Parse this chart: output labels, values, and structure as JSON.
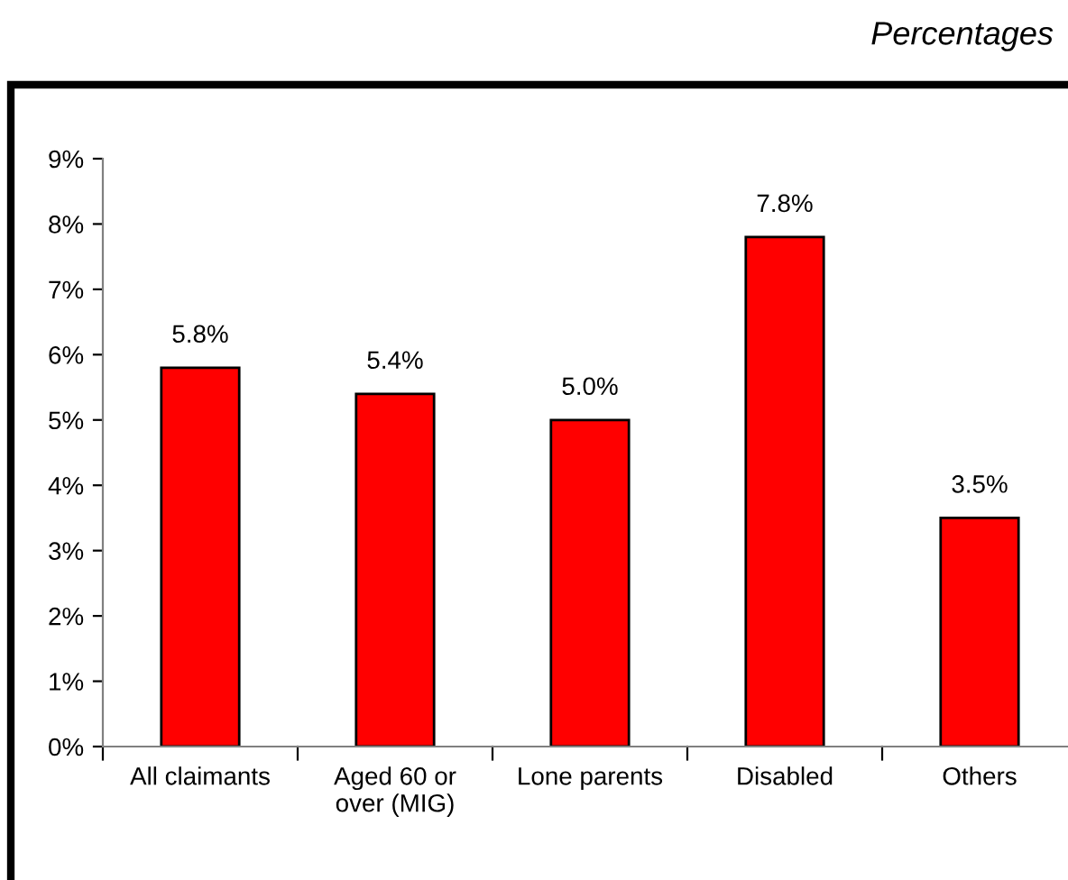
{
  "chart_data": {
    "type": "bar",
    "subtitle": "Percentages",
    "categories": [
      "All claimants",
      "Aged 60 or\nover (MIG)",
      "Lone parents",
      "Disabled",
      "Others"
    ],
    "values": [
      5.8,
      5.4,
      5.0,
      7.8,
      3.5
    ],
    "value_labels": [
      "5.8%",
      "5.4%",
      "5.0%",
      "7.8%",
      "3.5%"
    ],
    "color": "#ff0000",
    "ylim": [
      0,
      9
    ],
    "yticks": [
      {
        "value": 0,
        "label": "0%"
      },
      {
        "value": 1,
        "label": "1%"
      },
      {
        "value": 2,
        "label": "2%"
      },
      {
        "value": 3,
        "label": "3%"
      },
      {
        "value": 4,
        "label": "4%"
      },
      {
        "value": 5,
        "label": "5%"
      },
      {
        "value": 6,
        "label": "6%"
      },
      {
        "value": 7,
        "label": "7%"
      },
      {
        "value": 8,
        "label": "8%"
      },
      {
        "value": 9,
        "label": "9%"
      }
    ],
    "grid": false
  }
}
